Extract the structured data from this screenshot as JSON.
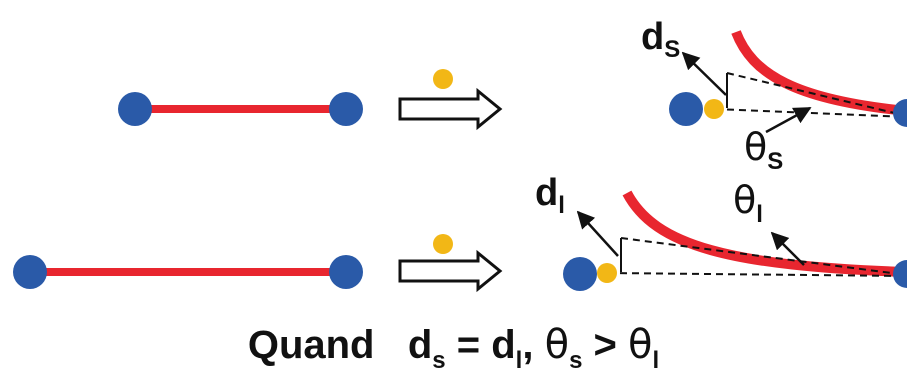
{
  "colors": {
    "node": "#2a5aa8",
    "chain": "#e8262f",
    "particle": "#f2b716",
    "ink": "#111111"
  },
  "icons": [
    "arrow-right-icon"
  ],
  "labels": {
    "short_d": "d",
    "short_d_sub": "S",
    "short_theta": "θ",
    "short_theta_sub": "S",
    "long_d": "d",
    "long_d_sub": "l",
    "long_theta": "θ",
    "long_theta_sub": "l"
  },
  "caption": {
    "word": "Quand",
    "d1": "d",
    "d1_sub": "s",
    "eq": " = ",
    "d2": "d",
    "d2_sub": "l",
    "comma": ", ",
    "t1": "θ",
    "t1_sub": "s",
    "gt": " > ",
    "t2": "θ",
    "t2_sub": "l"
  }
}
